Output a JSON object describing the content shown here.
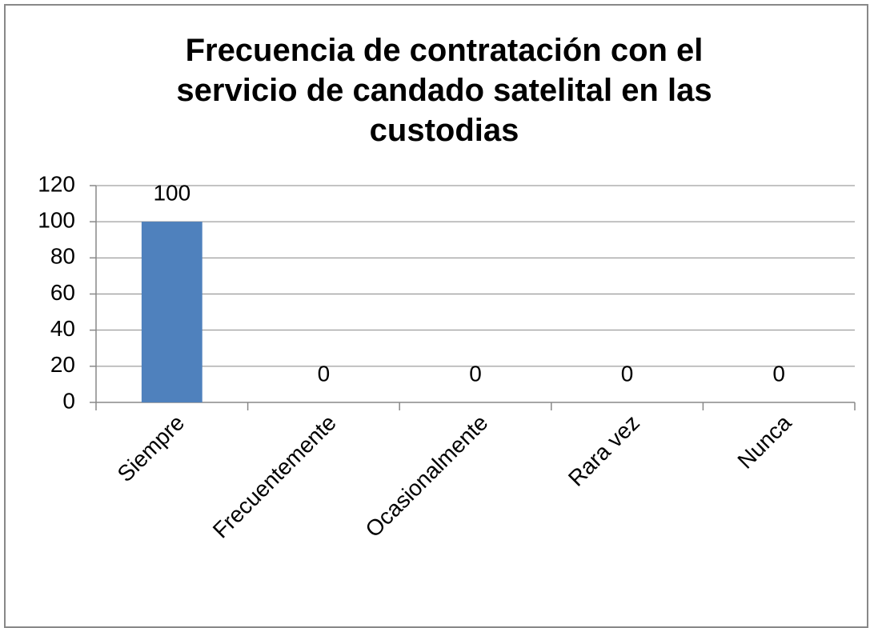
{
  "chart_data": {
    "type": "bar",
    "title": "Frecuencia de contratación con el servicio de candado satelital en las custodias",
    "categories": [
      "Siempre",
      "Frecuentemente",
      "Ocasionalmente",
      "Rara vez",
      "Nunca"
    ],
    "values": [
      100,
      0,
      0,
      0,
      0
    ],
    "color": "#4f81bd",
    "ylim": [
      0,
      120
    ],
    "yticks": [
      0,
      20,
      40,
      60,
      80,
      100,
      120
    ],
    "grid": true
  }
}
